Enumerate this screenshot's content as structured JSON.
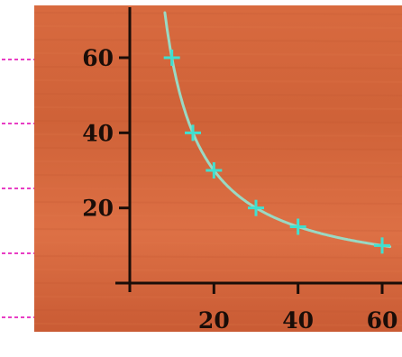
{
  "colors": {
    "page_background": "#ffffff",
    "panel_background": "#d8683e",
    "axis": "#1a0d08",
    "curve": "#9ad9c3",
    "markers": "#3fe0d0",
    "side_marks": "#e83ec4"
  },
  "chart_data": {
    "type": "line",
    "title": "",
    "xlabel": "",
    "ylabel": "",
    "xlim": [
      0,
      62
    ],
    "ylim": [
      0,
      70
    ],
    "x_ticks": [
      20,
      40,
      60
    ],
    "y_ticks": [
      20,
      40,
      60
    ],
    "x_tick_labels": [
      "20",
      "40",
      "60"
    ],
    "y_tick_labels": [
      "20",
      "40",
      "60"
    ],
    "grid": false,
    "legend": "none",
    "series": [
      {
        "x": [
          10,
          15,
          20,
          30,
          40,
          60
        ],
        "y": [
          60,
          40,
          30,
          20,
          15,
          10
        ],
        "marker": "plus",
        "curve": "smooth"
      }
    ]
  }
}
